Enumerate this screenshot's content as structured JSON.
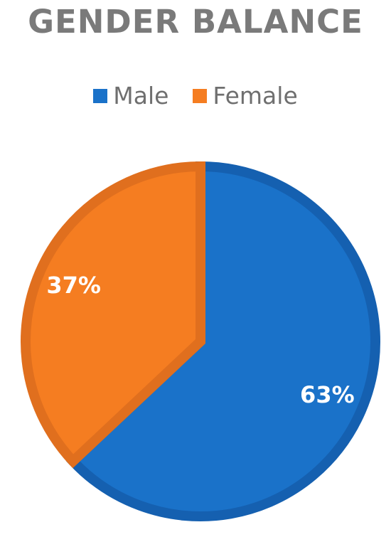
{
  "chart_data": {
    "type": "pie",
    "title": "GENDER BALANCE",
    "categories": [
      "Male",
      "Female"
    ],
    "values": [
      63,
      37
    ],
    "labels": [
      "63%",
      "37%"
    ],
    "colors": [
      "#1a72c9",
      "#f57d21"
    ],
    "border_colors": [
      "#1560b0",
      "#e06f1e"
    ],
    "legend_position": "top",
    "start_angle": "12 o'clock, clockwise"
  }
}
